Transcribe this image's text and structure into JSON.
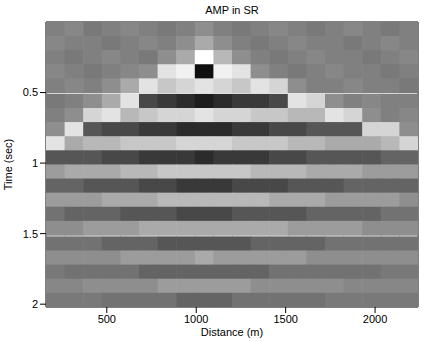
{
  "chart_data": {
    "type": "heatmap",
    "title": "AMP in SR",
    "x_label": "Distance (m)",
    "y_label": "Time (sec)",
    "xlim": [
      160,
      2240
    ],
    "xticks": [
      500,
      1000,
      1500,
      2000
    ],
    "ylim": [
      0,
      2.02
    ],
    "yticks": [
      0.5,
      1,
      1.5,
      2
    ],
    "x": [
      212,
      316,
      420,
      524,
      628,
      732,
      836,
      940,
      1044,
      1148,
      1252,
      1356,
      1460,
      1564,
      1668,
      1772,
      1876,
      1980,
      2084,
      2188
    ],
    "y": [
      0.05,
      0.15,
      0.25,
      0.35,
      0.45,
      0.56,
      0.66,
      0.76,
      0.86,
      0.96,
      1.06,
      1.16,
      1.26,
      1.36,
      1.46,
      1.57,
      1.67,
      1.77,
      1.87,
      1.97
    ],
    "cells": [
      [
        0,
        0.05,
        -0.05,
        0,
        0.05,
        0,
        -0.05,
        0,
        0.1,
        0,
        -0.05,
        0,
        0.05,
        0,
        -0.05,
        0,
        0.05,
        0,
        -0.05,
        0
      ],
      [
        0.05,
        0,
        0,
        -0.05,
        0,
        0.05,
        0,
        0.1,
        0.3,
        0.1,
        0,
        -0.05,
        0,
        0.05,
        0,
        0,
        -0.05,
        0,
        0.05,
        0
      ],
      [
        0,
        -0.05,
        0,
        0.05,
        0,
        -0.05,
        0.1,
        0.3,
        0.9,
        0.4,
        0.1,
        0,
        -0.05,
        0,
        0.05,
        0,
        0,
        -0.05,
        0,
        0.05
      ],
      [
        0.05,
        0,
        -0.05,
        0,
        0.05,
        0.1,
        0.7,
        0.8,
        -0.8,
        0.8,
        0.7,
        0.1,
        0,
        -0.05,
        0,
        0.05,
        0,
        0,
        -0.05,
        0
      ],
      [
        0,
        0.05,
        0,
        0.1,
        0.3,
        0.7,
        0.5,
        0.6,
        0.7,
        0.6,
        0.5,
        0.7,
        0.6,
        0.1,
        0,
        0,
        0.05,
        0,
        0,
        -0.05
      ],
      [
        -0.05,
        0,
        0.1,
        0.3,
        0.7,
        -0.4,
        -0.5,
        -0.6,
        -0.7,
        -0.6,
        -0.5,
        -0.5,
        -0.4,
        0.7,
        0.6,
        0.1,
        0,
        0.05,
        0,
        0
      ],
      [
        0,
        0.1,
        0.6,
        0.7,
        0.4,
        0.5,
        0.6,
        0.6,
        0.7,
        0.6,
        0.6,
        0.5,
        0.5,
        0.4,
        0.4,
        0.7,
        0.6,
        0.1,
        0,
        0.05
      ],
      [
        0.1,
        0.7,
        -0.3,
        -0.4,
        -0.4,
        -0.5,
        -0.5,
        -0.6,
        -0.6,
        -0.6,
        -0.5,
        -0.5,
        -0.4,
        -0.4,
        -0.3,
        -0.3,
        -0.3,
        0.6,
        0.6,
        0.1
      ],
      [
        0.7,
        0.3,
        0.4,
        0.4,
        0.5,
        0.5,
        0.5,
        0.6,
        0.6,
        0.6,
        0.5,
        0.5,
        0.5,
        0.4,
        0.4,
        0.3,
        0.3,
        0.3,
        0.4,
        0.6
      ],
      [
        -0.3,
        -0.3,
        -0.3,
        -0.4,
        -0.4,
        -0.5,
        -0.5,
        -0.5,
        -0.6,
        -0.5,
        -0.5,
        -0.5,
        -0.4,
        -0.4,
        -0.3,
        -0.3,
        -0.3,
        -0.3,
        -0.2,
        -0.2
      ],
      [
        0.2,
        0.3,
        0.3,
        0.3,
        0.4,
        0.4,
        0.5,
        0.5,
        0.5,
        0.5,
        0.5,
        0.4,
        0.4,
        0.4,
        0.3,
        0.3,
        0.3,
        0.2,
        0.2,
        0.2
      ],
      [
        -0.2,
        -0.2,
        -0.3,
        -0.3,
        -0.3,
        -0.4,
        -0.4,
        -0.5,
        -0.5,
        -0.5,
        -0.4,
        -0.4,
        -0.4,
        -0.3,
        -0.3,
        -0.3,
        -0.2,
        -0.2,
        -0.2,
        -0.2
      ],
      [
        0.2,
        0.2,
        0.2,
        0.3,
        0.3,
        0.3,
        0.4,
        0.4,
        0.4,
        0.4,
        0.4,
        0.4,
        0.3,
        0.3,
        0.3,
        0.2,
        0.2,
        0.2,
        0.2,
        0.1
      ],
      [
        -0.1,
        -0.2,
        -0.2,
        -0.2,
        -0.3,
        -0.3,
        -0.3,
        -0.4,
        -0.4,
        -0.4,
        -0.3,
        -0.3,
        -0.3,
        -0.3,
        -0.2,
        -0.2,
        -0.2,
        -0.2,
        -0.1,
        -0.1
      ],
      [
        0.1,
        0.1,
        0.2,
        0.2,
        0.2,
        0.3,
        0.3,
        0.3,
        0.3,
        0.3,
        0.3,
        0.3,
        0.3,
        0.2,
        0.2,
        0.2,
        0.2,
        0.1,
        0.1,
        0.1
      ],
      [
        -0.1,
        -0.1,
        -0.1,
        -0.2,
        -0.2,
        -0.2,
        -0.3,
        -0.3,
        -0.3,
        -0.3,
        -0.3,
        -0.2,
        -0.2,
        -0.2,
        -0.2,
        -0.1,
        -0.1,
        -0.1,
        -0.1,
        -0.1
      ],
      [
        0.1,
        0.1,
        0.1,
        0.1,
        0.2,
        0.2,
        0.2,
        0.2,
        0.3,
        0.2,
        0.2,
        0.2,
        0.2,
        0.2,
        0.1,
        0.1,
        0.1,
        0.1,
        0.1,
        0.1
      ],
      [
        -0.05,
        -0.1,
        -0.1,
        -0.1,
        -0.1,
        -0.2,
        -0.2,
        -0.2,
        -0.2,
        -0.2,
        -0.2,
        -0.2,
        -0.1,
        -0.1,
        -0.1,
        -0.1,
        -0.1,
        -0.1,
        -0.05,
        -0.05
      ],
      [
        0.05,
        0.05,
        0.1,
        0.1,
        0.1,
        0.1,
        0.2,
        0.2,
        0.2,
        0.2,
        0.2,
        0.1,
        0.1,
        0.1,
        0.1,
        0.1,
        0.05,
        0.05,
        0.05,
        0.05
      ],
      [
        -0.05,
        -0.05,
        -0.05,
        -0.1,
        -0.1,
        -0.1,
        -0.1,
        -0.2,
        -0.2,
        -0.2,
        -0.1,
        -0.1,
        -0.1,
        -0.1,
        -0.1,
        -0.05,
        -0.05,
        -0.05,
        -0.05,
        -0.05
      ]
    ]
  }
}
